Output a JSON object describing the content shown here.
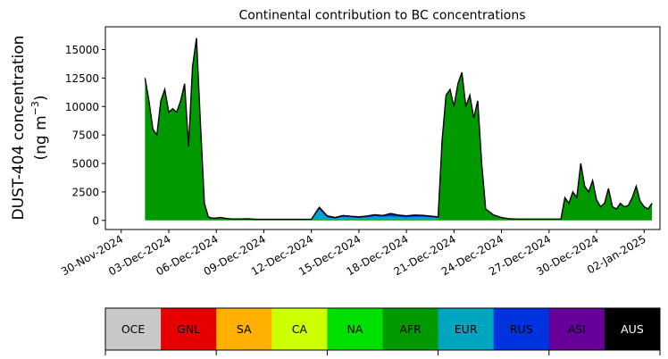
{
  "chart_data": {
    "type": "area",
    "title": "Continental contribution to BC concentrations",
    "ylabel_line1": "DUST-404 concentration",
    "ylabel_line2": "(ng m",
    "ylabel_sup": "−3",
    "ylabel_close": ")",
    "xlabel": "",
    "ylim": [
      -800,
      17000
    ],
    "xlim": [
      "2024-11-29T00:00",
      "2025-01-03T00:00"
    ],
    "yticks": [
      0,
      2500,
      5000,
      7500,
      10000,
      12500,
      15000
    ],
    "ytick_labels": [
      "0",
      "2500",
      "5000",
      "7500",
      "10000",
      "12500",
      "15000"
    ],
    "xticks": [
      "2024-11-30",
      "2024-12-03",
      "2024-12-06",
      "2024-12-09",
      "2024-12-12",
      "2024-12-15",
      "2024-12-18",
      "2024-12-21",
      "2024-12-24",
      "2024-12-27",
      "2024-12-30",
      "2025-01-02"
    ],
    "xtick_labels": [
      "30-Nov-2024",
      "03-Dec-2024",
      "06-Dec-2024",
      "09-Dec-2024",
      "12-Dec-2024",
      "15-Dec-2024",
      "18-Dec-2024",
      "21-Dec-2024",
      "24-Dec-2024",
      "27-Dec-2024",
      "30-Dec-2024",
      "02-Jan-2025"
    ],
    "grid": false,
    "stack_order": [
      "OCE",
      "GNL",
      "SA",
      "CA",
      "NA",
      "AFR",
      "EUR",
      "RUS",
      "ASI",
      "AUS"
    ],
    "x": [
      "2024-12-01T12:00",
      "2024-12-01T18:00",
      "2024-12-02T00:00",
      "2024-12-02T06:00",
      "2024-12-02T12:00",
      "2024-12-02T18:00",
      "2024-12-03T00:00",
      "2024-12-03T06:00",
      "2024-12-03T12:00",
      "2024-12-03T18:00",
      "2024-12-04T00:00",
      "2024-12-04T06:00",
      "2024-12-04T12:00",
      "2024-12-04T18:00",
      "2024-12-05T00:00",
      "2024-12-05T06:00",
      "2024-12-05T12:00",
      "2024-12-05T18:00",
      "2024-12-06T00:00",
      "2024-12-06T06:00",
      "2024-12-06T12:00",
      "2024-12-06T18:00",
      "2024-12-07T00:00",
      "2024-12-07T12:00",
      "2024-12-08T00:00",
      "2024-12-08T12:00",
      "2024-12-09T00:00",
      "2024-12-10T00:00",
      "2024-12-11T00:00",
      "2024-12-12T00:00",
      "2024-12-12T12:00",
      "2024-12-13T00:00",
      "2024-12-13T12:00",
      "2024-12-14T00:00",
      "2024-12-14T12:00",
      "2024-12-15T00:00",
      "2024-12-15T12:00",
      "2024-12-16T00:00",
      "2024-12-16T12:00",
      "2024-12-17T00:00",
      "2024-12-17T12:00",
      "2024-12-18T00:00",
      "2024-12-18T12:00",
      "2024-12-19T00:00",
      "2024-12-19T12:00",
      "2024-12-20T00:00",
      "2024-12-20T06:00",
      "2024-12-20T12:00",
      "2024-12-20T18:00",
      "2024-12-21T00:00",
      "2024-12-21T06:00",
      "2024-12-21T12:00",
      "2024-12-21T18:00",
      "2024-12-22T00:00",
      "2024-12-22T06:00",
      "2024-12-22T12:00",
      "2024-12-22T18:00",
      "2024-12-23T00:00",
      "2024-12-23T12:00",
      "2024-12-24T00:00",
      "2024-12-24T12:00",
      "2024-12-25T00:00",
      "2024-12-25T12:00",
      "2024-12-26T00:00",
      "2024-12-26T12:00",
      "2024-12-27T00:00",
      "2024-12-27T06:00",
      "2024-12-27T12:00",
      "2024-12-27T18:00",
      "2024-12-28T00:00",
      "2024-12-28T06:00",
      "2024-12-28T12:00",
      "2024-12-28T18:00",
      "2024-12-29T00:00",
      "2024-12-29T06:00",
      "2024-12-29T12:00",
      "2024-12-29T18:00",
      "2024-12-30T00:00",
      "2024-12-30T06:00",
      "2024-12-30T12:00",
      "2024-12-30T18:00",
      "2024-12-31T00:00",
      "2024-12-31T06:00",
      "2024-12-31T12:00",
      "2024-12-31T18:00",
      "2025-01-01T00:00",
      "2025-01-01T06:00",
      "2025-01-01T12:00",
      "2025-01-01T18:00",
      "2025-01-02T00:00",
      "2025-01-02T06:00",
      "2025-01-02T12:00"
    ],
    "series": [
      {
        "name": "OCE",
        "color": "#c8c8c8",
        "values": [
          0,
          0,
          0,
          0,
          0,
          0,
          0,
          0,
          0,
          0,
          0,
          0,
          0,
          0,
          0,
          0,
          0,
          0,
          0,
          0,
          0,
          0,
          0,
          0,
          0,
          0,
          0,
          0,
          0,
          0,
          0,
          0,
          0,
          0,
          0,
          0,
          0,
          0,
          0,
          0,
          0,
          0,
          0,
          0,
          0,
          0,
          0,
          0,
          0,
          0,
          0,
          0,
          0,
          0,
          0,
          0,
          0,
          0,
          0,
          0,
          0,
          0,
          0,
          0,
          0,
          0,
          0,
          0,
          0,
          0,
          0,
          0,
          0,
          0,
          0,
          0,
          0,
          0,
          0,
          0,
          0,
          0,
          0,
          0,
          0,
          0,
          0,
          0,
          0,
          0,
          0,
          0
        ]
      },
      {
        "name": "GNL",
        "color": "#e60000",
        "values": [
          0,
          0,
          0,
          0,
          0,
          0,
          0,
          0,
          0,
          0,
          0,
          0,
          0,
          0,
          0,
          0,
          0,
          0,
          0,
          0,
          0,
          0,
          0,
          0,
          0,
          0,
          0,
          0,
          0,
          0,
          0,
          0,
          0,
          0,
          0,
          0,
          0,
          0,
          0,
          0,
          0,
          0,
          0,
          0,
          0,
          0,
          0,
          0,
          0,
          0,
          0,
          0,
          0,
          0,
          0,
          0,
          0,
          0,
          0,
          0,
          0,
          0,
          0,
          0,
          0,
          0,
          0,
          0,
          0,
          0,
          0,
          0,
          0,
          0,
          0,
          0,
          0,
          0,
          0,
          0,
          0,
          0,
          0,
          0,
          0,
          0,
          0,
          0,
          0,
          0,
          0,
          0
        ]
      },
      {
        "name": "SA",
        "color": "#ffb000",
        "values": [
          0,
          0,
          0,
          0,
          0,
          0,
          0,
          0,
          0,
          0,
          0,
          0,
          0,
          0,
          0,
          0,
          0,
          0,
          0,
          0,
          0,
          0,
          0,
          0,
          0,
          0,
          0,
          0,
          0,
          0,
          0,
          0,
          0,
          0,
          0,
          0,
          0,
          0,
          0,
          0,
          0,
          0,
          0,
          0,
          0,
          0,
          0,
          0,
          0,
          0,
          0,
          0,
          0,
          0,
          0,
          0,
          0,
          0,
          0,
          0,
          0,
          0,
          0,
          0,
          0,
          0,
          0,
          0,
          0,
          0,
          0,
          0,
          0,
          0,
          0,
          0,
          0,
          0,
          0,
          0,
          0,
          0,
          0,
          0,
          0,
          0,
          0,
          0,
          0,
          0,
          0,
          0
        ]
      },
      {
        "name": "CA",
        "color": "#ccff00",
        "values": [
          0,
          0,
          0,
          0,
          0,
          0,
          0,
          0,
          0,
          0,
          0,
          0,
          0,
          0,
          0,
          0,
          0,
          0,
          0,
          0,
          0,
          0,
          0,
          0,
          0,
          0,
          0,
          0,
          0,
          0,
          0,
          0,
          0,
          0,
          0,
          0,
          0,
          0,
          0,
          0,
          0,
          0,
          0,
          0,
          0,
          0,
          0,
          0,
          0,
          0,
          0,
          0,
          0,
          0,
          0,
          0,
          0,
          0,
          0,
          0,
          0,
          0,
          0,
          0,
          0,
          0,
          0,
          0,
          0,
          0,
          0,
          0,
          0,
          0,
          0,
          0,
          0,
          0,
          0,
          0,
          0,
          0,
          0,
          0,
          0,
          0,
          0,
          0,
          0,
          0,
          0,
          0
        ]
      },
      {
        "name": "NA",
        "color": "#00e000",
        "values": [
          0,
          0,
          0,
          0,
          0,
          0,
          0,
          0,
          0,
          0,
          0,
          0,
          0,
          0,
          0,
          0,
          0,
          0,
          0,
          0,
          0,
          0,
          0,
          0,
          0,
          0,
          0,
          0,
          0,
          0,
          0,
          0,
          0,
          0,
          0,
          0,
          0,
          0,
          0,
          0,
          0,
          0,
          0,
          0,
          0,
          0,
          0,
          0,
          0,
          0,
          0,
          0,
          0,
          0,
          0,
          0,
          0,
          0,
          0,
          0,
          0,
          0,
          0,
          0,
          0,
          0,
          0,
          0,
          0,
          0,
          0,
          0,
          0,
          0,
          0,
          0,
          0,
          0,
          0,
          0,
          0,
          0,
          0,
          0,
          0,
          0,
          0,
          0,
          0,
          0,
          0,
          0
        ]
      },
      {
        "name": "AFR",
        "color": "#009900",
        "values": [
          12500,
          10500,
          8000,
          7500,
          10500,
          11500,
          9500,
          9800,
          9500,
          10500,
          12000,
          6500,
          13500,
          16000,
          8500,
          1500,
          300,
          150,
          150,
          180,
          150,
          100,
          80,
          80,
          60,
          60,
          60,
          60,
          60,
          60,
          60,
          60,
          60,
          60,
          60,
          60,
          60,
          60,
          60,
          60,
          60,
          60,
          60,
          60,
          60,
          60,
          7000,
          11000,
          11500,
          10000,
          12000,
          13000,
          10000,
          11000,
          9000,
          10500,
          5000,
          1000,
          400,
          200,
          100,
          80,
          80,
          80,
          80,
          80,
          80,
          80,
          80,
          2000,
          1500,
          2500,
          2000,
          5000,
          3000,
          2500,
          3500,
          1800,
          1200,
          1500,
          2800,
          1200,
          1000,
          1500,
          1200,
          1300,
          2000,
          3000,
          1700,
          1200,
          1000,
          1500
        ]
      },
      {
        "name": "EUR",
        "color": "#00a6c0",
        "values": [
          0,
          0,
          0,
          0,
          0,
          0,
          0,
          0,
          0,
          0,
          0,
          0,
          0,
          0,
          0,
          0,
          0,
          0,
          0,
          0,
          0,
          0,
          0,
          0,
          0,
          0,
          0,
          0,
          0,
          0,
          900,
          200,
          100,
          250,
          200,
          150,
          200,
          300,
          250,
          300,
          250,
          200,
          250,
          250,
          200,
          150,
          0,
          0,
          0,
          0,
          0,
          0,
          0,
          0,
          0,
          0,
          0,
          0,
          0,
          0,
          0,
          0,
          0,
          0,
          0,
          0,
          0,
          0,
          0,
          0,
          0,
          0,
          0,
          0,
          0,
          0,
          0,
          0,
          0,
          0,
          0,
          0,
          0,
          0,
          0,
          0,
          0,
          0,
          0,
          0,
          0,
          0
        ]
      },
      {
        "name": "RUS",
        "color": "#0033e0",
        "values": [
          0,
          0,
          0,
          0,
          0,
          0,
          0,
          0,
          0,
          0,
          0,
          0,
          0,
          0,
          0,
          0,
          0,
          0,
          0,
          0,
          0,
          0,
          0,
          0,
          0,
          0,
          0,
          0,
          0,
          0,
          150,
          100,
          50,
          80,
          60,
          60,
          80,
          100,
          80,
          200,
          120,
          100,
          120,
          100,
          80,
          60,
          0,
          0,
          0,
          0,
          0,
          0,
          0,
          0,
          0,
          0,
          0,
          0,
          0,
          0,
          0,
          0,
          0,
          0,
          0,
          0,
          0,
          0,
          0,
          0,
          0,
          0,
          0,
          0,
          0,
          0,
          0,
          0,
          0,
          0,
          0,
          0,
          0,
          0,
          0,
          0,
          0,
          0,
          0,
          0,
          0,
          0
        ]
      },
      {
        "name": "ASI",
        "color": "#660099",
        "values": [
          0,
          0,
          0,
          0,
          0,
          0,
          0,
          0,
          0,
          0,
          0,
          0,
          0,
          0,
          0,
          0,
          0,
          50,
          50,
          80,
          50,
          50,
          50,
          50,
          80,
          40,
          40,
          40,
          40,
          40,
          40,
          40,
          40,
          40,
          40,
          40,
          40,
          40,
          40,
          40,
          40,
          40,
          40,
          40,
          40,
          40,
          0,
          0,
          0,
          0,
          0,
          0,
          0,
          0,
          0,
          0,
          0,
          0,
          80,
          50,
          40,
          40,
          40,
          40,
          40,
          40,
          40,
          40,
          40,
          0,
          0,
          0,
          0,
          0,
          0,
          0,
          0,
          0,
          0,
          0,
          0,
          0,
          0,
          0,
          0,
          0,
          0,
          0,
          0,
          0,
          0,
          0
        ]
      },
      {
        "name": "AUS",
        "color": "#000000",
        "values": [
          0,
          0,
          0,
          0,
          0,
          0,
          0,
          0,
          0,
          0,
          0,
          0,
          0,
          0,
          0,
          0,
          0,
          0,
          0,
          0,
          0,
          0,
          0,
          0,
          0,
          0,
          0,
          0,
          0,
          0,
          0,
          0,
          0,
          0,
          0,
          0,
          0,
          0,
          0,
          0,
          0,
          0,
          0,
          0,
          0,
          0,
          0,
          0,
          0,
          0,
          0,
          0,
          0,
          0,
          0,
          0,
          0,
          0,
          0,
          0,
          0,
          0,
          0,
          0,
          0,
          0,
          0,
          0,
          0,
          0,
          0,
          0,
          0,
          0,
          0,
          0,
          0,
          0,
          0,
          0,
          0,
          0,
          0,
          0,
          0,
          0,
          0,
          0,
          0,
          0,
          0,
          0
        ]
      }
    ]
  },
  "legend": [
    {
      "label": "OCE",
      "color": "#c8c8c8",
      "text_color": "#000000"
    },
    {
      "label": "GNL",
      "color": "#e60000",
      "text_color": "#000000"
    },
    {
      "label": "SA",
      "color": "#ffb000",
      "text_color": "#000000"
    },
    {
      "label": "CA",
      "color": "#ccff00",
      "text_color": "#000000"
    },
    {
      "label": "NA",
      "color": "#00e000",
      "text_color": "#000000"
    },
    {
      "label": "AFR",
      "color": "#009900",
      "text_color": "#000000"
    },
    {
      "label": "EUR",
      "color": "#00a6c0",
      "text_color": "#000000"
    },
    {
      "label": "RUS",
      "color": "#0033e0",
      "text_color": "#000000"
    },
    {
      "label": "ASI",
      "color": "#660099",
      "text_color": "#000000"
    },
    {
      "label": "AUS",
      "color": "#000000",
      "text_color": "#ffffff"
    }
  ]
}
